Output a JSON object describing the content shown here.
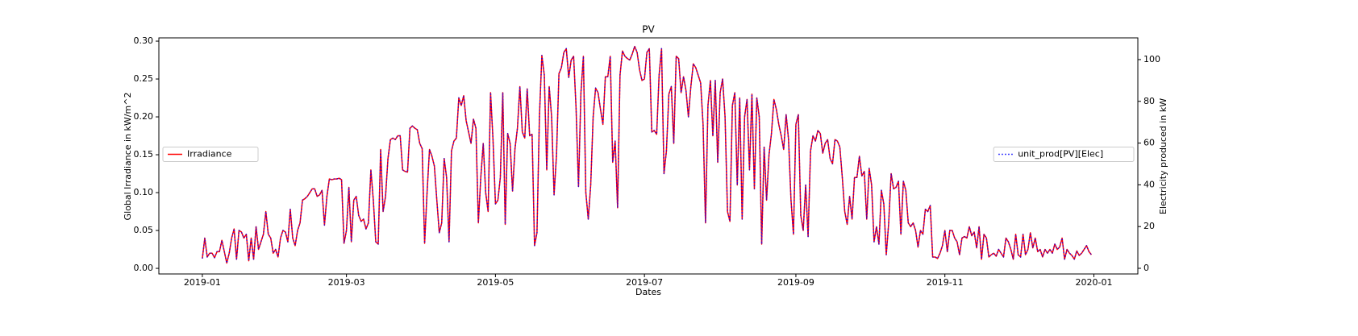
{
  "chart_data": {
    "type": "line",
    "title": "PV",
    "xlabel": "Dates",
    "ylabel": "Global Irradiance in kW/m^2",
    "y2label": "Electricity produced in kW",
    "xlim": [
      -17.8,
      383
    ],
    "xticks": [
      {
        "value": 0,
        "label": "2019-01"
      },
      {
        "value": 59,
        "label": "2019-03"
      },
      {
        "value": 120,
        "label": "2019-05"
      },
      {
        "value": 181,
        "label": "2019-07"
      },
      {
        "value": 243,
        "label": "2019-09"
      },
      {
        "value": 304,
        "label": "2019-11"
      },
      {
        "value": 365,
        "label": "2020-01"
      }
    ],
    "ylim": [
      -0.0074,
      0.3043
    ],
    "yticks": [
      {
        "value": 0,
        "label": "0.00"
      },
      {
        "value": 0.05,
        "label": "0.05"
      },
      {
        "value": 0.1,
        "label": "0.10"
      },
      {
        "value": 0.15,
        "label": "0.15"
      },
      {
        "value": 0.2,
        "label": "0.20"
      },
      {
        "value": 0.25,
        "label": "0.25"
      },
      {
        "value": 0.3,
        "label": "0.30"
      }
    ],
    "y2lim": [
      -2.7,
      110.4
    ],
    "y2ticks": [
      0,
      20,
      40,
      60,
      80,
      100
    ],
    "series": [
      {
        "name": "Irradiance",
        "color": "#ff0000",
        "style": "solid",
        "legend_loc": "center left",
        "values": [
          0.013,
          0.04,
          0.015,
          0.02,
          0.02,
          0.014,
          0.022,
          0.022,
          0.037,
          0.022,
          0.007,
          0.02,
          0.04,
          0.052,
          0.012,
          0.05,
          0.048,
          0.04,
          0.045,
          0.01,
          0.04,
          0.012,
          0.055,
          0.025,
          0.035,
          0.045,
          0.075,
          0.045,
          0.04,
          0.02,
          0.025,
          0.015,
          0.04,
          0.05,
          0.048,
          0.035,
          0.078,
          0.04,
          0.03,
          0.05,
          0.06,
          0.09,
          0.092,
          0.095,
          0.1,
          0.105,
          0.105,
          0.095,
          0.097,
          0.103,
          0.057,
          0.095,
          0.118,
          0.117,
          0.118,
          0.118,
          0.119,
          0.117,
          0.033,
          0.05,
          0.107,
          0.035,
          0.09,
          0.095,
          0.07,
          0.062,
          0.065,
          0.052,
          0.06,
          0.13,
          0.09,
          0.035,
          0.032,
          0.157,
          0.075,
          0.095,
          0.145,
          0.17,
          0.172,
          0.17,
          0.175,
          0.175,
          0.13,
          0.128,
          0.127,
          0.185,
          0.188,
          0.185,
          0.183,
          0.165,
          0.158,
          0.033,
          0.1,
          0.157,
          0.148,
          0.135,
          0.09,
          0.047,
          0.06,
          0.145,
          0.12,
          0.035,
          0.155,
          0.168,
          0.172,
          0.225,
          0.215,
          0.228,
          0.195,
          0.18,
          0.165,
          0.197,
          0.185,
          0.06,
          0.12,
          0.165,
          0.1,
          0.075,
          0.232,
          0.17,
          0.085,
          0.09,
          0.12,
          0.232,
          0.058,
          0.178,
          0.165,
          0.102,
          0.158,
          0.185,
          0.24,
          0.18,
          0.172,
          0.237,
          0.175,
          0.177,
          0.03,
          0.047,
          0.2,
          0.281,
          0.255,
          0.13,
          0.24,
          0.2,
          0.097,
          0.15,
          0.257,
          0.265,
          0.285,
          0.29,
          0.252,
          0.275,
          0.28,
          0.212,
          0.108,
          0.232,
          0.28,
          0.1,
          0.065,
          0.11,
          0.2,
          0.238,
          0.232,
          0.21,
          0.19,
          0.253,
          0.253,
          0.28,
          0.14,
          0.168,
          0.08,
          0.255,
          0.287,
          0.28,
          0.277,
          0.275,
          0.283,
          0.293,
          0.285,
          0.262,
          0.248,
          0.25,
          0.285,
          0.29,
          0.18,
          0.182,
          0.177,
          0.255,
          0.29,
          0.125,
          0.155,
          0.23,
          0.24,
          0.165,
          0.28,
          0.277,
          0.232,
          0.253,
          0.235,
          0.2,
          0.24,
          0.27,
          0.265,
          0.255,
          0.245,
          0.19,
          0.06,
          0.215,
          0.248,
          0.175,
          0.248,
          0.14,
          0.232,
          0.25,
          0.2,
          0.075,
          0.062,
          0.215,
          0.232,
          0.11,
          0.225,
          0.065,
          0.2,
          0.223,
          0.13,
          0.23,
          0.105,
          0.225,
          0.2,
          0.032,
          0.16,
          0.09,
          0.15,
          0.178,
          0.223,
          0.21,
          0.19,
          0.175,
          0.157,
          0.203,
          0.17,
          0.09,
          0.045,
          0.19,
          0.203,
          0.07,
          0.05,
          0.11,
          0.042,
          0.155,
          0.175,
          0.168,
          0.182,
          0.178,
          0.152,
          0.165,
          0.17,
          0.145,
          0.138,
          0.17,
          0.168,
          0.16,
          0.12,
          0.075,
          0.058,
          0.095,
          0.065,
          0.12,
          0.12,
          0.148,
          0.122,
          0.128,
          0.065,
          0.132,
          0.11,
          0.035,
          0.055,
          0.032,
          0.103,
          0.085,
          0.018,
          0.06,
          0.125,
          0.105,
          0.107,
          0.115,
          0.045,
          0.115,
          0.103,
          0.06,
          0.055,
          0.06,
          0.05,
          0.028,
          0.05,
          0.045,
          0.078,
          0.075,
          0.083,
          0.015,
          0.015,
          0.013,
          0.02,
          0.03,
          0.05,
          0.022,
          0.05,
          0.05,
          0.04,
          0.035,
          0.018,
          0.04,
          0.042,
          0.04,
          0.055,
          0.043,
          0.048,
          0.027,
          0.055,
          0.012,
          0.045,
          0.04,
          0.015,
          0.018,
          0.02,
          0.016,
          0.025,
          0.02,
          0.015,
          0.04,
          0.035,
          0.025,
          0.012,
          0.045,
          0.018,
          0.015,
          0.045,
          0.018,
          0.025,
          0.047,
          0.027,
          0.04,
          0.022,
          0.025,
          0.015,
          0.025,
          0.02,
          0.025,
          0.02,
          0.032,
          0.025,
          0.028,
          0.04,
          0.012,
          0.025,
          0.02,
          0.017,
          0.012,
          0.023,
          0.017,
          0.02,
          0.025,
          0.03,
          0.022,
          0.018
        ]
      },
      {
        "name": "unit_prod[PV][Elec]",
        "color": "#0000ff",
        "style": "dotted",
        "axis": "y2",
        "legend_loc": "center right",
        "values": [
          4.7,
          14.5,
          5.4,
          7.3,
          7.3,
          5.1,
          8.0,
          8.0,
          13.4,
          8.0,
          2.5,
          7.3,
          14.5,
          18.9,
          4.4,
          18.2,
          17.4,
          14.5,
          16.3,
          3.6,
          14.5,
          4.4,
          20.0,
          9.1,
          12.7,
          16.3,
          27.2,
          16.3,
          14.5,
          7.3,
          9.1,
          5.4,
          14.5,
          18.2,
          17.4,
          12.7,
          28.3,
          14.5,
          10.9,
          18.2,
          21.8,
          32.7,
          33.4,
          34.5,
          36.3,
          38.1,
          38.1,
          34.5,
          35.2,
          37.4,
          20.7,
          34.5,
          42.8,
          42.5,
          42.8,
          42.8,
          43.2,
          42.5,
          12.0,
          18.2,
          38.8,
          12.7,
          32.7,
          34.5,
          25.4,
          22.5,
          23.6,
          18.9,
          21.8,
          47.2,
          32.7,
          12.7,
          11.6,
          57.0,
          27.2,
          34.5,
          52.6,
          61.7,
          62.4,
          61.7,
          63.5,
          63.5,
          47.2,
          46.5,
          46.1,
          67.2,
          68.2,
          67.2,
          66.4,
          59.9,
          57.4,
          12.0,
          36.3,
          57.0,
          53.7,
          49.0,
          32.7,
          17.1,
          21.8,
          52.6,
          43.6,
          12.7,
          56.3,
          61.0,
          62.4,
          81.7,
          78.0,
          82.8,
          70.8,
          65.3,
          59.9,
          71.5,
          67.2,
          21.8,
          43.6,
          59.9,
          36.3,
          27.2,
          84.2,
          61.7,
          30.9,
          32.7,
          43.6,
          84.2,
          21.1,
          64.6,
          59.9,
          37.0,
          57.4,
          67.2,
          87.1,
          65.3,
          62.4,
          86.0,
          63.5,
          64.3,
          10.9,
          17.1,
          72.6,
          102.0,
          92.6,
          47.2,
          87.1,
          72.6,
          35.2,
          54.5,
          93.3,
          96.2,
          103.5,
          105.3,
          91.5,
          99.8,
          101.6,
          77.0,
          39.2,
          84.2,
          101.6,
          36.3,
          23.6,
          39.9,
          72.6,
          86.4,
          84.2,
          76.2,
          69.0,
          91.8,
          91.8,
          101.6,
          50.8,
          61.0,
          29.0,
          92.6,
          104.2,
          101.6,
          100.6,
          99.8,
          102.7,
          106.4,
          103.5,
          95.1,
          90.0,
          90.8,
          103.5,
          105.3,
          65.3,
          66.1,
          64.3,
          92.6,
          105.3,
          45.4,
          56.3,
          83.5,
          87.1,
          59.9,
          101.6,
          100.6,
          84.2,
          91.8,
          85.3,
          72.6,
          87.1,
          98.0,
          96.2,
          92.6,
          88.9,
          69.0,
          21.8,
          78.0,
          90.0,
          63.5,
          90.0,
          50.8,
          84.2,
          90.8,
          72.6,
          27.2,
          22.5,
          78.0,
          84.2,
          39.9,
          81.7,
          23.6,
          72.6,
          80.9,
          47.2,
          83.5,
          38.1,
          81.7,
          72.6,
          11.6,
          58.1,
          32.7,
          54.5,
          64.6,
          80.9,
          76.2,
          69.0,
          63.5,
          57.0,
          73.7,
          61.7,
          32.7,
          16.3,
          69.0,
          73.7,
          25.4,
          18.2,
          39.9,
          15.2,
          56.3,
          63.5,
          61.0,
          66.1,
          64.6,
          55.2,
          59.9,
          61.7,
          52.6,
          50.1,
          61.7,
          61.0,
          58.1,
          43.6,
          27.2,
          21.1,
          34.5,
          23.6,
          43.6,
          43.6,
          53.7,
          44.3,
          46.5,
          23.6,
          47.9,
          39.9,
          12.7,
          20.0,
          11.6,
          37.4,
          30.9,
          6.5,
          21.8,
          45.4,
          38.1,
          38.8,
          41.7,
          16.3,
          41.7,
          37.4,
          21.8,
          20.0,
          21.8,
          18.2,
          10.2,
          18.2,
          16.3,
          28.3,
          27.2,
          30.1,
          5.4,
          5.4,
          4.7,
          7.3,
          10.9,
          18.2,
          8.0,
          18.2,
          18.2,
          14.5,
          12.7,
          6.5,
          14.5,
          15.2,
          14.5,
          20.0,
          15.6,
          17.4,
          9.8,
          20.0,
          4.4,
          16.3,
          14.5,
          5.4,
          6.5,
          7.3,
          5.8,
          9.1,
          7.3,
          5.4,
          14.5,
          12.7,
          9.1,
          4.4,
          16.3,
          6.5,
          5.4,
          16.3,
          6.5,
          9.1,
          17.1,
          9.8,
          14.5,
          8.0,
          9.1,
          5.4,
          9.1,
          7.3,
          9.1,
          7.3,
          11.6,
          9.1,
          10.2,
          14.5,
          4.4,
          9.1,
          7.3,
          6.2,
          4.4,
          8.3,
          6.2,
          7.3,
          9.1,
          10.9,
          8.0,
          6.5
        ]
      }
    ]
  }
}
